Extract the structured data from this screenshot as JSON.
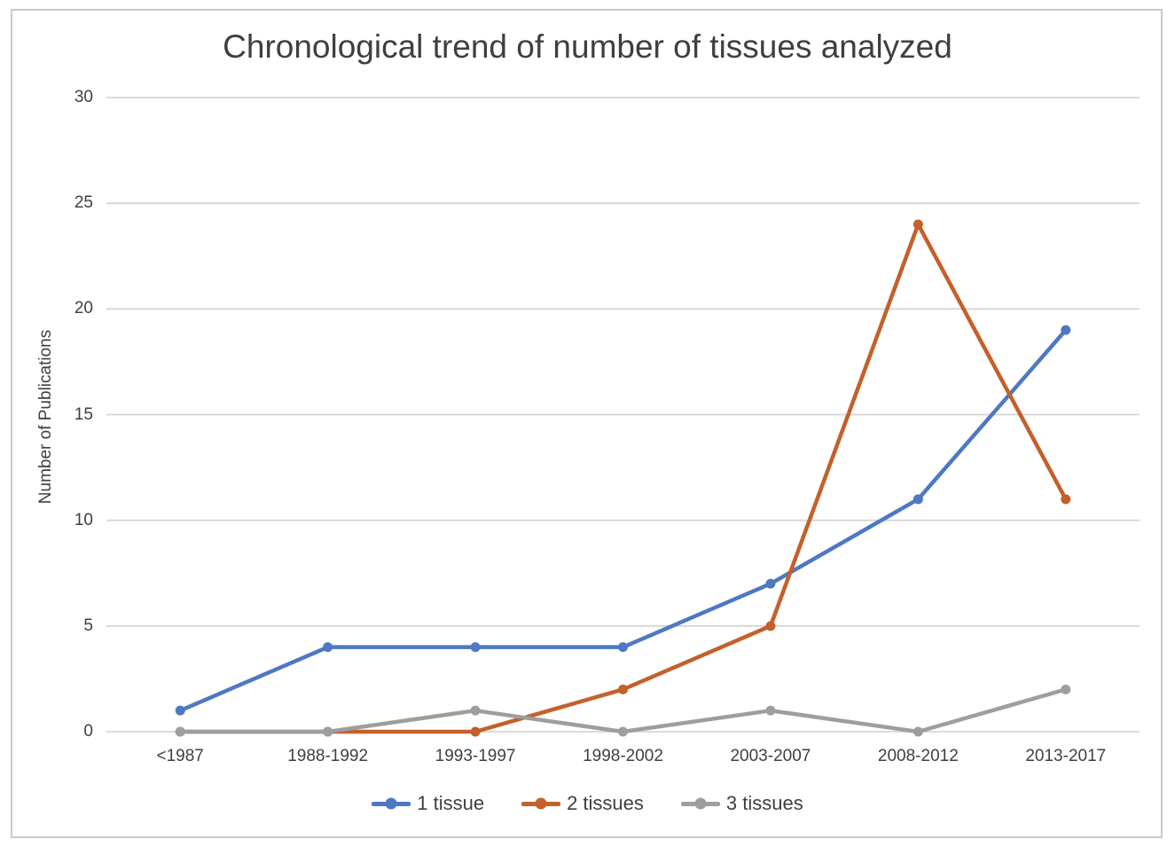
{
  "frame": {
    "border_color": "#c9c9c9"
  },
  "chart_data": {
    "type": "line",
    "title": "Chronological trend of number of tissues analyzed",
    "xlabel": "",
    "ylabel": "Number of Publications",
    "categories": [
      "<1987",
      "1988-1992",
      "1993-1997",
      "1998-2002",
      "2003-2007",
      "2008-2012",
      "2013-2017"
    ],
    "series": [
      {
        "name": "1 tissue",
        "color": "#4e78c4",
        "values": [
          1,
          4,
          4,
          4,
          7,
          11,
          19
        ]
      },
      {
        "name": "2 tissues",
        "color": "#c4602b",
        "values": [
          0,
          0,
          0,
          2,
          5,
          24,
          11
        ]
      },
      {
        "name": "3 tissues",
        "color": "#9e9e9e",
        "values": [
          0,
          0,
          1,
          0,
          1,
          0,
          2
        ]
      }
    ],
    "ylim": [
      0,
      30
    ],
    "yticks": [
      0,
      5,
      10,
      15,
      20,
      25,
      30
    ],
    "grid": true,
    "gridline_color": "#d6d6d6",
    "text_color": "#404040",
    "title_color": "#3f3f3f",
    "legend_position": "bottom",
    "marker_style": "circle"
  }
}
